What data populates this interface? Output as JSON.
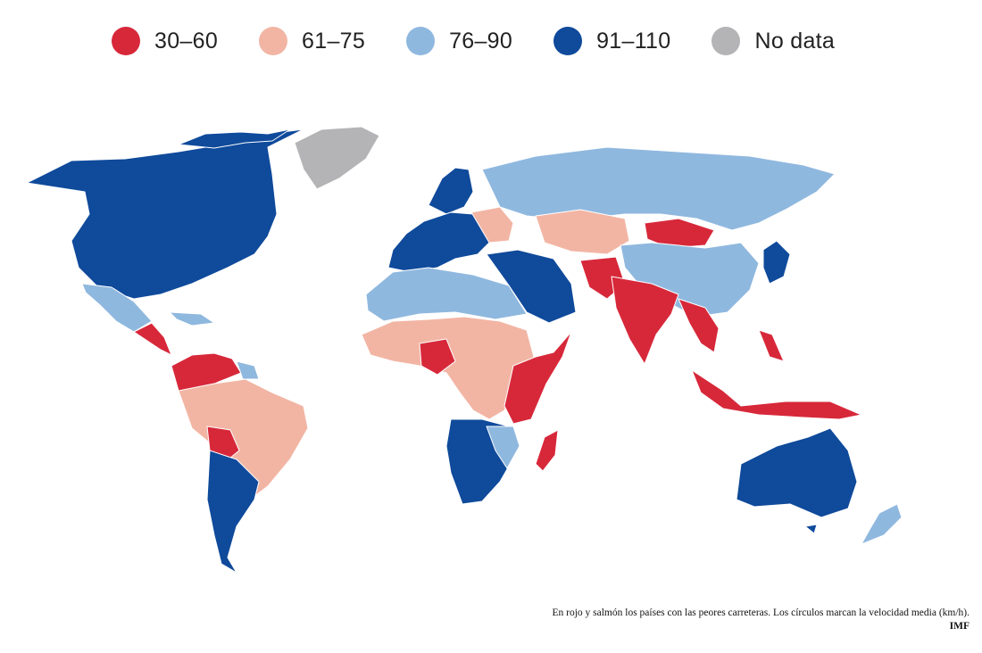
{
  "legend": [
    {
      "label": "30–60",
      "color": "#d7283a",
      "category": "red"
    },
    {
      "label": "61–75",
      "color": "#f2b5a4",
      "category": "salmon"
    },
    {
      "label": "76–90",
      "color": "#8fb8df",
      "category": "lightblue"
    },
    {
      "label": "91–110",
      "color": "#0f4a9b",
      "category": "darkblue"
    },
    {
      "label": "No data",
      "color": "#b4b4b6",
      "category": "nodata"
    }
  ],
  "caption": "En rojo y salmón los países con las peores carreteras. Los círculos marcan la velocidad media (km/h).",
  "source": "IMF",
  "map_colors": {
    "red": "#d7283a",
    "salmon": "#f2b5a4",
    "lightblue": "#8fb8df",
    "darkblue": "#0f4a9b",
    "nodata": "#b4b4b6",
    "border": "#ffffff"
  }
}
